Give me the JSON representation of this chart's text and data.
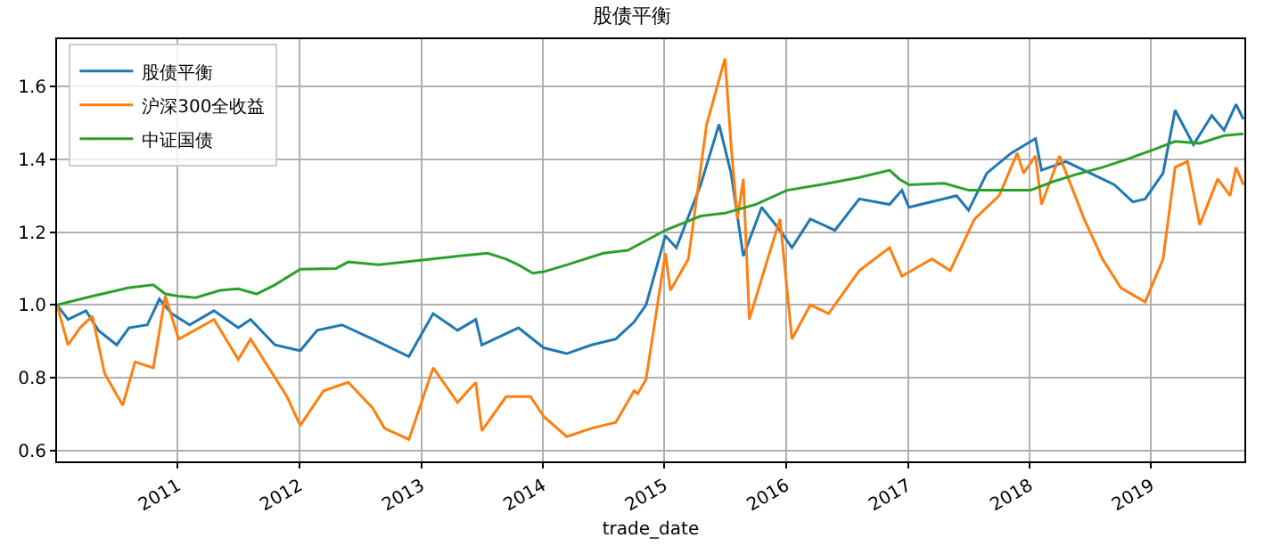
{
  "chart_data": {
    "type": "line",
    "title": "股债平衡",
    "xlabel": "trade_date",
    "xlim": [
      "2010-01-04",
      "2019-10-08"
    ],
    "xticks": [
      {
        "value": "2011-01-01",
        "label": "2011"
      },
      {
        "value": "2012-01-01",
        "label": "2012"
      },
      {
        "value": "2013-01-01",
        "label": "2013"
      },
      {
        "value": "2014-01-01",
        "label": "2014"
      },
      {
        "value": "2015-01-01",
        "label": "2015"
      },
      {
        "value": "2016-01-01",
        "label": "2016"
      },
      {
        "value": "2017-01-01",
        "label": "2017"
      },
      {
        "value": "2018-01-01",
        "label": "2018"
      },
      {
        "value": "2019-01-01",
        "label": "2019"
      }
    ],
    "ylim": [
      0.57,
      1.73
    ],
    "yticks": [
      0.6,
      0.8,
      {
        "value": 1,
        "label": "1.0"
      },
      1.2,
      1.4,
      1.6
    ],
    "grid": true,
    "legend": "top left",
    "marker": "none",
    "line_style": "solid",
    "series": [
      {
        "name": "股债平衡",
        "color": "#1f77b4",
        "x": [
          "2010-01-04",
          "2010-02-06",
          "2010-04-01",
          "2010-05-08",
          "2010-07-02",
          "2010-08-08",
          "2010-10-02",
          "2010-11-07",
          "2010-12-14",
          "2011-02-06",
          "2011-04-20",
          "2011-07-02",
          "2011-08-08",
          "2011-10-20",
          "2012-01-04",
          "2012-02-24",
          "2012-05-08",
          "2012-08-08",
          "2012-11-25",
          "2013-02-06",
          "2013-04-20",
          "2013-06-14",
          "2013-07-02",
          "2013-10-20",
          "2014-01-04",
          "2014-03-14",
          "2014-05-27",
          "2014-08-08",
          "2014-10-02",
          "2014-11-07",
          "2015-01-04",
          "2015-02-06",
          "2015-04-20",
          "2015-06-14",
          "2015-07-20",
          "2015-08-26",
          "2015-10-20",
          "2015-12-14",
          "2016-01-19",
          "2016-03-14",
          "2016-05-27",
          "2016-08-08",
          "2016-11-07",
          "2016-12-14",
          "2017-01-04",
          "2017-05-27",
          "2017-07-02",
          "2017-08-26",
          "2017-11-07",
          "2018-01-19",
          "2018-02-06",
          "2018-04-20",
          "2018-07-02",
          "2018-09-13",
          "2018-11-07",
          "2018-12-14",
          "2019-02-06",
          "2019-03-14",
          "2019-05-08",
          "2019-07-02",
          "2019-08-08",
          "2019-09-13",
          "2019-10-05"
        ],
        "values": [
          1.0,
          0.96,
          0.984,
          0.93,
          0.89,
          0.937,
          0.945,
          1.016,
          0.976,
          0.945,
          0.984,
          0.937,
          0.96,
          0.89,
          0.874,
          0.93,
          0.945,
          0.906,
          0.858,
          0.976,
          0.93,
          0.96,
          0.89,
          0.937,
          0.882,
          0.866,
          0.89,
          0.906,
          0.953,
          1.0,
          1.19,
          1.157,
          1.33,
          1.496,
          1.362,
          1.134,
          1.268,
          1.205,
          1.157,
          1.236,
          1.205,
          1.291,
          1.276,
          1.315,
          1.268,
          1.3,
          1.26,
          1.362,
          1.417,
          1.457,
          1.37,
          1.394,
          1.362,
          1.33,
          1.283,
          1.291,
          1.362,
          1.535,
          1.44,
          1.52,
          1.48,
          1.551,
          1.51
        ]
      },
      {
        "name": "沪深300全收益",
        "color": "#ff7f0e",
        "x": [
          "2010-01-04",
          "2010-02-06",
          "2010-03-14",
          "2010-04-20",
          "2010-05-27",
          "2010-07-20",
          "2010-08-26",
          "2010-10-20",
          "2010-11-25",
          "2011-01-04",
          "2011-04-20",
          "2011-07-02",
          "2011-08-08",
          "2011-11-25",
          "2012-01-04",
          "2012-03-14",
          "2012-05-27",
          "2012-08-08",
          "2012-09-13",
          "2012-11-25",
          "2013-02-06",
          "2013-04-20",
          "2013-06-14",
          "2013-07-02",
          "2013-09-13",
          "2013-11-25",
          "2014-01-04",
          "2014-03-14",
          "2014-05-27",
          "2014-08-08",
          "2014-10-02",
          "2014-10-13",
          "2014-11-07",
          "2015-01-04",
          "2015-01-19",
          "2015-03-14",
          "2015-05-08",
          "2015-07-02",
          "2015-07-20",
          "2015-08-08",
          "2015-08-26",
          "2015-09-13",
          "2015-11-07",
          "2015-12-14",
          "2016-01-19",
          "2016-03-14",
          "2016-05-08",
          "2016-08-08",
          "2016-11-07",
          "2016-12-14",
          "2017-03-14",
          "2017-05-08",
          "2017-07-20",
          "2017-10-02",
          "2017-11-25",
          "2017-12-14",
          "2018-01-19",
          "2018-02-06",
          "2018-04-01",
          "2018-06-14",
          "2018-08-08",
          "2018-10-02",
          "2018-12-14",
          "2019-02-06",
          "2019-03-14",
          "2019-04-20",
          "2019-05-27",
          "2019-07-20",
          "2019-08-26",
          "2019-09-13",
          "2019-10-05"
        ],
        "values": [
          1.0,
          0.89,
          0.937,
          0.969,
          0.811,
          0.724,
          0.843,
          0.827,
          1.024,
          0.906,
          0.96,
          0.85,
          0.906,
          0.748,
          0.669,
          0.764,
          0.787,
          0.717,
          0.661,
          0.63,
          0.827,
          0.732,
          0.787,
          0.654,
          0.748,
          0.748,
          0.693,
          0.638,
          0.661,
          0.677,
          0.764,
          0.756,
          0.795,
          1.142,
          1.04,
          1.126,
          1.496,
          1.677,
          1.441,
          1.236,
          1.346,
          0.96,
          1.126,
          1.236,
          0.906,
          1.0,
          0.976,
          1.094,
          1.157,
          1.079,
          1.126,
          1.094,
          1.236,
          1.3,
          1.417,
          1.362,
          1.409,
          1.276,
          1.409,
          1.236,
          1.126,
          1.047,
          1.008,
          1.126,
          1.378,
          1.394,
          1.22,
          1.346,
          1.3,
          1.378,
          1.33
        ]
      },
      {
        "name": "中证国债",
        "color": "#2ca02c",
        "x": [
          "2010-01-04",
          "2010-04-20",
          "2010-08-08",
          "2010-10-20",
          "2010-11-25",
          "2011-01-04",
          "2011-02-24",
          "2011-05-08",
          "2011-07-02",
          "2011-08-26",
          "2011-10-20",
          "2012-01-04",
          "2012-04-20",
          "2012-05-27",
          "2012-08-26",
          "2013-01-04",
          "2013-04-20",
          "2013-07-20",
          "2013-09-13",
          "2013-10-20",
          "2013-12-02",
          "2014-01-04",
          "2014-03-14",
          "2014-07-02",
          "2014-09-13",
          "2015-01-04",
          "2015-04-20",
          "2015-07-02",
          "2015-10-02",
          "2016-01-04",
          "2016-04-20",
          "2016-08-08",
          "2016-11-07",
          "2016-12-06",
          "2017-01-04",
          "2017-04-20",
          "2017-07-02",
          "2017-10-20",
          "2018-01-04",
          "2018-03-14",
          "2018-05-27",
          "2018-08-08",
          "2018-10-20",
          "2019-01-04",
          "2019-03-14",
          "2019-05-27",
          "2019-08-08",
          "2019-10-05"
        ],
        "values": [
          1.0,
          1.024,
          1.047,
          1.055,
          1.03,
          1.024,
          1.02,
          1.04,
          1.044,
          1.03,
          1.055,
          1.098,
          1.1,
          1.118,
          1.11,
          1.123,
          1.134,
          1.142,
          1.126,
          1.11,
          1.087,
          1.091,
          1.11,
          1.142,
          1.15,
          1.205,
          1.244,
          1.252,
          1.276,
          1.315,
          1.331,
          1.35,
          1.37,
          1.346,
          1.33,
          1.334,
          1.315,
          1.315,
          1.315,
          1.339,
          1.36,
          1.378,
          1.4,
          1.425,
          1.449,
          1.444,
          1.465,
          1.47
        ]
      }
    ]
  }
}
